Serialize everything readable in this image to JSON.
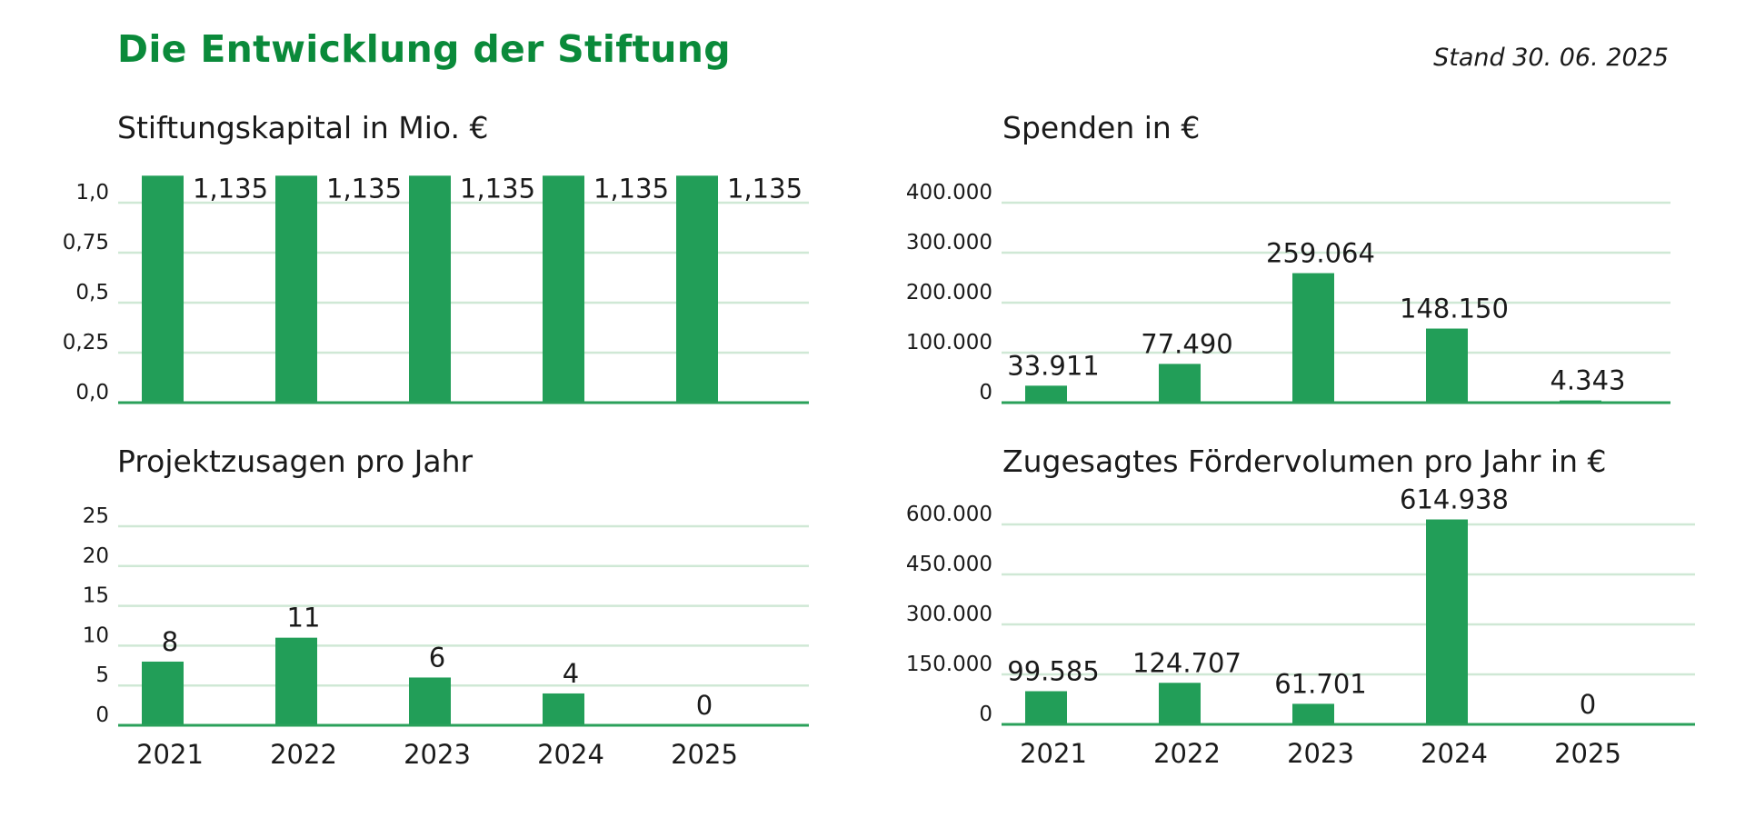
{
  "header": {
    "title": "Die Entwicklung der Stiftung",
    "stand": "Stand 30. 06. 2025"
  },
  "colors": {
    "title": "#0a8a3a",
    "bar": "#229e58",
    "axis": "#2aa05a",
    "grid": "#cfe8d5"
  },
  "chart_data": [
    {
      "id": "stiftungskapital",
      "type": "bar",
      "title": "Stiftungskapital in Mio. €",
      "categories": [
        "2021",
        "2022",
        "2023",
        "2024",
        "2025"
      ],
      "values": [
        1.135,
        1.135,
        1.135,
        1.135,
        1.135
      ],
      "value_labels": [
        "1,135",
        "1,135",
        "1,135",
        "1,135",
        "1,135"
      ],
      "label_position": "right-of-bar",
      "yticks": [
        0,
        0.25,
        0.5,
        0.75,
        1.0
      ],
      "ytick_labels": [
        "0,0",
        "0,25",
        "0,5",
        "0,75",
        "1,0"
      ],
      "ylim": [
        0,
        1.0
      ],
      "show_xlabels": false,
      "grid": true,
      "xlabel": "",
      "ylabel": ""
    },
    {
      "id": "spenden",
      "type": "bar",
      "title": "Spenden in €",
      "categories": [
        "2021",
        "2022",
        "2023",
        "2024",
        "2025"
      ],
      "values": [
        33911,
        77490,
        259064,
        148150,
        4343
      ],
      "value_labels": [
        "33.911",
        "77.490",
        "259.064",
        "148.150",
        "4.343"
      ],
      "label_position": "above-bar",
      "yticks": [
        0,
        100000,
        200000,
        300000,
        400000
      ],
      "ytick_labels": [
        "0",
        "100.000",
        "200.000",
        "300.000",
        "400.000"
      ],
      "ylim": [
        0,
        400000
      ],
      "show_xlabels": false,
      "grid": true,
      "xlabel": "",
      "ylabel": ""
    },
    {
      "id": "projektzusagen",
      "type": "bar",
      "title": "Projektzusagen pro Jahr",
      "categories": [
        "2021",
        "2022",
        "2023",
        "2024",
        "2025"
      ],
      "values": [
        8,
        11,
        6,
        4,
        0
      ],
      "value_labels": [
        "8",
        "11",
        "6",
        "4",
        "0"
      ],
      "label_position": "above-bar",
      "yticks": [
        0,
        5,
        10,
        15,
        20,
        25
      ],
      "ytick_labels": [
        "0",
        "5",
        "10",
        "15",
        "20",
        "25"
      ],
      "ylim": [
        0,
        25
      ],
      "show_xlabels": true,
      "grid": true,
      "xlabel": "",
      "ylabel": ""
    },
    {
      "id": "foerdervolumen",
      "type": "bar",
      "title": "Zugesagtes Fördervolumen pro Jahr in €",
      "categories": [
        "2021",
        "2022",
        "2023",
        "2024",
        "2025"
      ],
      "values": [
        99585,
        124707,
        61701,
        614938,
        0
      ],
      "value_labels": [
        "99.585",
        "124.707",
        "61.701",
        "614.938",
        "0"
      ],
      "label_position": "above-bar",
      "yticks": [
        0,
        150000,
        300000,
        450000,
        600000
      ],
      "ytick_labels": [
        "0",
        "150.000",
        "300.000",
        "450.000",
        "600.000"
      ],
      "ylim": [
        0,
        600000
      ],
      "show_xlabels": true,
      "grid": true,
      "xlabel": "",
      "ylabel": ""
    }
  ]
}
